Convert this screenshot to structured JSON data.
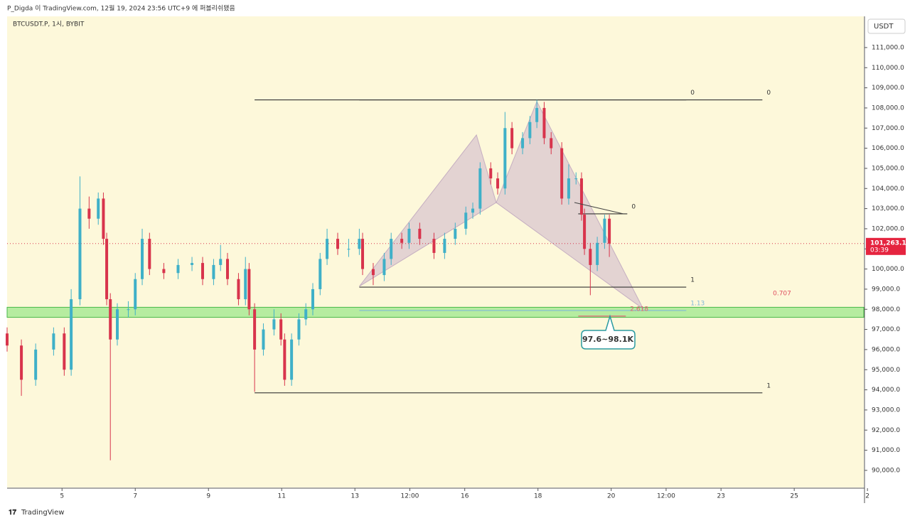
{
  "header": {
    "published": "P_Digda 이 TradingView.com, 12월 19, 2024 23:56 UTC+9 에 퍼블리쉬됐음"
  },
  "chart_data": {
    "type": "candlestick",
    "title": "BTCUSDT.P, 1시, BYBIT",
    "currency": "USDT",
    "up_color": "#3fb0c8",
    "down_color": "#d8344c",
    "x": [
      3.5,
      3.89,
      4.28,
      4.77,
      5.06,
      5.25,
      5.49,
      5.74,
      5.99,
      6.13,
      6.22,
      6.32,
      6.51,
      6.81,
      7.0,
      7.19,
      7.39,
      7.78,
      8.17,
      8.55,
      8.84,
      9.14,
      9.33,
      9.52,
      9.82,
      10.01,
      10.11,
      10.26,
      10.5,
      10.79,
      10.98,
      11.08,
      11.27,
      11.47,
      11.66,
      11.85,
      12.05,
      12.24,
      12.53,
      12.83,
      13.12,
      13.21,
      13.5,
      13.8,
      13.99,
      14.28,
      14.48,
      14.77,
      15.16,
      15.45,
      15.74,
      16.03,
      16.22,
      16.42,
      16.71,
      16.9,
      17.1,
      17.29,
      17.58,
      17.78,
      17.97,
      18.17,
      18.36,
      18.65,
      18.84,
      19.04,
      19.19,
      19.27,
      19.43,
      19.62,
      19.82,
      19.95
    ],
    "open": [
      96800,
      96200,
      94500,
      96000,
      96800,
      95000,
      98500,
      103000,
      102500,
      103500,
      101500,
      98500,
      96500,
      98000,
      98000,
      99500,
      101500,
      100000,
      99800,
      100200,
      100300,
      99500,
      100200,
      100500,
      99500,
      98500,
      100000,
      98000,
      96000,
      97000,
      97500,
      96500,
      94500,
      96500,
      97500,
      98000,
      99000,
      100500,
      101500,
      101000,
      101000,
      101500,
      100000,
      99700,
      100500,
      101500,
      101300,
      102000,
      101500,
      100800,
      101500,
      102000,
      102800,
      103000,
      105000,
      104500,
      104000,
      107000,
      106000,
      106500,
      107300,
      108000,
      106500,
      106000,
      103500,
      104500,
      104500,
      102700,
      101000,
      100200,
      101300,
      102500
    ],
    "high": [
      97100,
      96500,
      96300,
      97100,
      97100,
      99000,
      104600,
      103600,
      103800,
      103800,
      101800,
      98800,
      98300,
      98400,
      99800,
      102000,
      101800,
      100300,
      100500,
      100600,
      100600,
      100500,
      101200,
      100800,
      99800,
      100600,
      100300,
      98300,
      97300,
      98000,
      97800,
      96800,
      96800,
      97800,
      98300,
      99300,
      100800,
      102000,
      101800,
      101500,
      102000,
      101800,
      100300,
      100800,
      101800,
      101800,
      102300,
      102300,
      101800,
      101800,
      102300,
      103100,
      103300,
      105300,
      105300,
      104800,
      107800,
      107300,
      106800,
      107600,
      108400,
      108300,
      106800,
      106300,
      105200,
      104800,
      104800,
      103000,
      101300,
      101600,
      102700,
      102700
    ],
    "low": [
      95900,
      93700,
      94200,
      95700,
      94700,
      94700,
      98200,
      102000,
      102200,
      101200,
      98200,
      90500,
      96200,
      97600,
      97700,
      99200,
      99700,
      99500,
      99500,
      99900,
      99200,
      99200,
      99900,
      99200,
      98200,
      98200,
      97700,
      93900,
      95700,
      96700,
      96200,
      94200,
      94200,
      96200,
      97200,
      97700,
      98700,
      100200,
      100700,
      100600,
      100700,
      99700,
      99200,
      99400,
      100200,
      101000,
      101000,
      101200,
      100500,
      100500,
      101200,
      101700,
      102500,
      102700,
      104200,
      103700,
      103700,
      105700,
      105700,
      106200,
      107000,
      106200,
      105700,
      103200,
      103200,
      104200,
      102400,
      100700,
      98700,
      99900,
      101000,
      100600
    ],
    "close": [
      96200,
      94500,
      96000,
      96800,
      95000,
      98500,
      103000,
      102500,
      103500,
      101500,
      98500,
      96500,
      98000,
      98000,
      99500,
      101500,
      100000,
      99800,
      100200,
      100300,
      99500,
      100200,
      100500,
      99500,
      98500,
      100000,
      98000,
      96000,
      97000,
      97500,
      96500,
      94500,
      96500,
      97500,
      98000,
      99000,
      100500,
      101500,
      101000,
      101000,
      101500,
      100000,
      99700,
      100500,
      101500,
      101300,
      102000,
      101500,
      100800,
      101500,
      102000,
      102800,
      103000,
      105000,
      104500,
      104000,
      107000,
      106000,
      106500,
      107300,
      108000,
      106500,
      106000,
      103500,
      104500,
      104500,
      102700,
      101000,
      100200,
      101300,
      102500,
      101263.1
    ],
    "xlim": [
      3.5,
      26.9
    ],
    "ylim": [
      89150,
      112550
    ],
    "xticks": [
      5,
      7,
      9,
      11,
      13,
      {
        "value": 14.5,
        "label": "12:00"
      },
      16,
      18,
      20,
      {
        "value": 21.5,
        "label": "12:00"
      },
      23,
      25,
      {
        "value": 27,
        "label": "2"
      }
    ],
    "yticks": [
      {
        "value": 90000,
        "label": "90,000.0"
      },
      {
        "value": 91000,
        "label": "91,000.0"
      },
      {
        "value": 92000,
        "label": "92,000.0"
      },
      {
        "value": 93000,
        "label": "93,000.0"
      },
      {
        "value": 94000,
        "label": "94,000.0"
      },
      {
        "value": 95000,
        "label": "95,000.0"
      },
      {
        "value": 96000,
        "label": "96,000.0"
      },
      {
        "value": 97000,
        "label": "97,000.0"
      },
      {
        "value": 98000,
        "label": "98,000.0"
      },
      {
        "value": 99000,
        "label": "99,000.0"
      },
      {
        "value": 100000,
        "label": "100,000.0"
      },
      {
        "value": 101000,
        "label": "101,000.0"
      },
      {
        "value": 102000,
        "label": "102,000.0"
      },
      {
        "value": 103000,
        "label": "103,000.0"
      },
      {
        "value": 104000,
        "label": "104,000.0"
      },
      {
        "value": 105000,
        "label": "105,000.0"
      },
      {
        "value": 106000,
        "label": "106,000.0"
      },
      {
        "value": 107000,
        "label": "107,000.0"
      },
      {
        "value": 108000,
        "label": "108,000.0"
      },
      {
        "value": 109000,
        "label": "109,000.0"
      },
      {
        "value": 110000,
        "label": "110,000.0"
      },
      {
        "value": 111000,
        "label": "111,000.0"
      }
    ],
    "last_price": {
      "value": 101263.1,
      "label": "101,263.1"
    },
    "countdown": "03:39",
    "zone": {
      "low": 97600,
      "high": 98100,
      "label": "97.6~98.1K"
    },
    "levels": [
      {
        "price": 108400,
        "from": 10.26,
        "to": 24.13,
        "label": "0",
        "color": "#333333",
        "show_line": true
      },
      {
        "price": 108400,
        "from": 13.12,
        "to": 22.05,
        "label": "0",
        "color": "#333333",
        "show_line": true
      },
      {
        "price": 99100,
        "from": 13.12,
        "to": 22.05,
        "label": "1",
        "color": "#333333",
        "show_line": true
      },
      {
        "price": 93850,
        "from": 10.26,
        "to": 24.13,
        "label": "1",
        "color": "#333333",
        "show_line": true
      },
      {
        "price": 97940,
        "from": 13.12,
        "to": 22.05,
        "label": "1.13",
        "color": "#7fb8d8",
        "show_line": true
      },
      {
        "price": 102740,
        "from": 19.1,
        "to": 20.44,
        "label": "0",
        "color": "#333333",
        "show_line": true
      },
      {
        "price": 97660,
        "from": 19.1,
        "to": 20.4,
        "label": "2.618",
        "color": "#e06070",
        "show_line": true
      },
      {
        "price": 98430,
        "from": 24.3,
        "to": 24.3,
        "label": "0.707",
        "color": "#e05060",
        "show_line": false
      }
    ],
    "pattern": [
      {
        "x": [
          13.12,
          16.32,
          16.86
        ],
        "price": [
          99140,
          106660,
          103300
        ]
      },
      {
        "x": [
          16.86,
          17.97,
          20.88
        ],
        "price": [
          103300,
          108320,
          98010
        ]
      }
    ]
  },
  "footer": {
    "brand": "TradingView"
  }
}
